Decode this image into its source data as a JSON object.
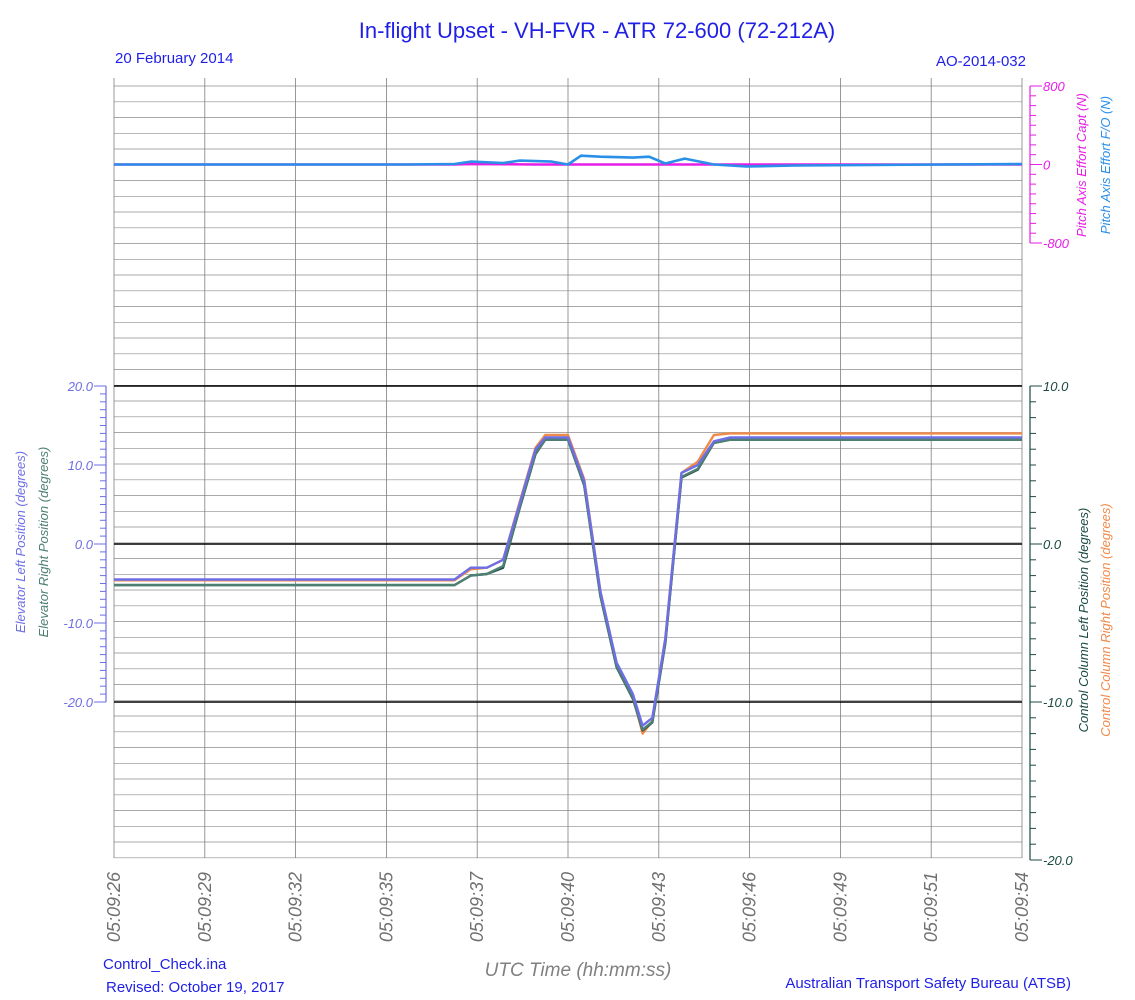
{
  "header": {
    "title": "In-flight Upset - VH-FVR -  ATR 72-600 (72-212A)",
    "date": "20 February 2014",
    "report_id": "AO-2014-032"
  },
  "footer": {
    "file": "Control_Check.ina",
    "revised": "Revised: October 19, 2017",
    "org": "Australian Transport Safety Bureau (ATSB)"
  },
  "colors": {
    "title_blue": "#1f1fe6",
    "magenta": "#e61ee6",
    "light_blue": "#2a8fe8",
    "elev_left": "#6e6ee6",
    "elev_right": "#4e7f73",
    "col_left": "#1b4a42",
    "col_right": "#f08a4b",
    "grid": "#7f7f7f",
    "zero_line": "#000000"
  },
  "chart_data": {
    "type": "line",
    "x_label": "UTC Time (hh:mm:ss)",
    "x_range": [
      "05:09:26",
      "05:09:54"
    ],
    "x_ticks": [
      "05:09:26",
      "05:09:29",
      "05:09:32",
      "05:09:35",
      "05:09:37",
      "05:09:40",
      "05:09:43",
      "05:09:46",
      "05:09:49",
      "05:09:51",
      "05:09:54"
    ],
    "panels": [
      {
        "name": "pitch_effort",
        "axis": {
          "side": "right",
          "labels": [
            "Pitch Axis Effort Capt (N)",
            "Pitch Axis Effort F/O (N)"
          ],
          "ticks": [
            "800",
            "0",
            "-800"
          ],
          "ylim": [
            -800,
            800
          ]
        },
        "series": [
          {
            "name": "Pitch Axis Effort Capt (N)",
            "color_key": "magenta",
            "points": [
              [
                "05:09:26",
                0
              ],
              [
                "05:09:36.5",
                0
              ],
              [
                "05:09:37",
                5
              ],
              [
                "05:09:38",
                3
              ],
              [
                "05:09:39",
                0
              ],
              [
                "05:09:40",
                0
              ],
              [
                "05:09:41",
                0
              ],
              [
                "05:09:42",
                0
              ],
              [
                "05:09:43",
                0
              ],
              [
                "05:09:44",
                0
              ],
              [
                "05:09:45",
                0
              ],
              [
                "05:09:46",
                0
              ],
              [
                "05:09:54",
                0
              ]
            ]
          },
          {
            "name": "Pitch Axis Effort F/O (N)",
            "color_key": "light_blue",
            "points": [
              [
                "05:09:26",
                0
              ],
              [
                "05:09:35",
                0
              ],
              [
                "05:09:36.5",
                5
              ],
              [
                "05:09:37",
                30
              ],
              [
                "05:09:38",
                15
              ],
              [
                "05:09:38.5",
                40
              ],
              [
                "05:09:39.5",
                30
              ],
              [
                "05:09:40",
                0
              ],
              [
                "05:09:40.4",
                90
              ],
              [
                "05:09:41",
                80
              ],
              [
                "05:09:42",
                70
              ],
              [
                "05:09:42.5",
                80
              ],
              [
                "05:09:43",
                10
              ],
              [
                "05:09:43.6",
                60
              ],
              [
                "05:09:44.5",
                0
              ],
              [
                "05:09:45.5",
                -20
              ],
              [
                "05:09:47",
                -10
              ],
              [
                "05:09:54",
                5
              ]
            ]
          }
        ]
      },
      {
        "name": "elevator_and_column",
        "axes": {
          "left": {
            "labels": [
              "Elevator Left Position (degrees)",
              "Elevator Right Position (degrees)"
            ],
            "ticks": [
              "20.0",
              "10.0",
              "0.0",
              "-10.0",
              "-20.0"
            ],
            "ylim": [
              -40,
              20
            ]
          },
          "right": {
            "labels": [
              "Control Column Left Position (degrees)",
              "Control Column Right Position (degrees)"
            ],
            "ticks": [
              "10.0",
              "0.0",
              "-10.0",
              "-20.0"
            ],
            "ylim": [
              -20,
              10
            ]
          }
        },
        "reference_lines": [
          20,
          0,
          -20
        ],
        "series": [
          {
            "name": "Elevator Left Position (degrees)",
            "color_key": "elev_left",
            "points": [
              [
                "05:09:26",
                -4.5
              ],
              [
                "05:09:36.5",
                -4.5
              ],
              [
                "05:09:37",
                -3
              ],
              [
                "05:09:37.5",
                -3
              ],
              [
                "05:09:38",
                -2
              ],
              [
                "05:09:38.5",
                5
              ],
              [
                "05:09:39",
                12
              ],
              [
                "05:09:39.3",
                13.5
              ],
              [
                "05:09:40",
                13.5
              ],
              [
                "05:09:40.5",
                8
              ],
              [
                "05:09:41",
                -6
              ],
              [
                "05:09:41.5",
                -15
              ],
              [
                "05:09:42",
                -19
              ],
              [
                "05:09:42.3",
                -23
              ],
              [
                "05:09:42.6",
                -22
              ],
              [
                "05:09:43",
                -12
              ],
              [
                "05:09:43.5",
                9
              ],
              [
                "05:09:44",
                10
              ],
              [
                "05:09:44.5",
                13
              ],
              [
                "05:09:45",
                13.5
              ],
              [
                "05:09:54",
                13.5
              ]
            ]
          },
          {
            "name": "Elevator Right Position (degrees)",
            "color_key": "elev_right",
            "points": [
              [
                "05:09:26",
                -5.2
              ],
              [
                "05:09:36.5",
                -5.2
              ],
              [
                "05:09:37",
                -4
              ],
              [
                "05:09:37.5",
                -3.8
              ],
              [
                "05:09:38",
                -2.8
              ],
              [
                "05:09:38.5",
                4.5
              ],
              [
                "05:09:39",
                11.5
              ],
              [
                "05:09:39.3",
                13.2
              ],
              [
                "05:09:40",
                13.2
              ],
              [
                "05:09:40.5",
                7.5
              ],
              [
                "05:09:41",
                -6.5
              ],
              [
                "05:09:41.5",
                -15.5
              ],
              [
                "05:09:42",
                -19.5
              ],
              [
                "05:09:42.3",
                -23.5
              ],
              [
                "05:09:42.6",
                -22.5
              ],
              [
                "05:09:43",
                -12.5
              ],
              [
                "05:09:43.5",
                8.5
              ],
              [
                "05:09:44",
                9.5
              ],
              [
                "05:09:44.5",
                12.8
              ],
              [
                "05:09:45",
                13.2
              ],
              [
                "05:09:54",
                13.2
              ]
            ]
          },
          {
            "name": "Control Column Left Position (degrees)",
            "axis": "right",
            "color_key": "col_left",
            "points": [
              [
                "05:09:26",
                -2.6
              ],
              [
                "05:09:36.5",
                -2.6
              ],
              [
                "05:09:37",
                -2
              ],
              [
                "05:09:37.5",
                -1.9
              ],
              [
                "05:09:38",
                -1.5
              ],
              [
                "05:09:38.5",
                2.2
              ],
              [
                "05:09:39",
                5.7
              ],
              [
                "05:09:39.3",
                6.6
              ],
              [
                "05:09:40",
                6.6
              ],
              [
                "05:09:40.5",
                3.7
              ],
              [
                "05:09:41",
                -3.3
              ],
              [
                "05:09:41.5",
                -7.8
              ],
              [
                "05:09:42",
                -9.8
              ],
              [
                "05:09:42.3",
                -11.8
              ],
              [
                "05:09:42.6",
                -11.3
              ],
              [
                "05:09:43",
                -6.3
              ],
              [
                "05:09:43.5",
                4.2
              ],
              [
                "05:09:44",
                4.7
              ],
              [
                "05:09:44.5",
                6.4
              ],
              [
                "05:09:45",
                6.6
              ],
              [
                "05:09:54",
                6.6
              ]
            ]
          },
          {
            "name": "Control Column Right Position (degrees)",
            "axis": "right",
            "color_key": "col_right",
            "points": [
              [
                "05:09:26",
                -2.3
              ],
              [
                "05:09:36.5",
                -2.3
              ],
              [
                "05:09:37",
                -1.6
              ],
              [
                "05:09:37.5",
                -1.5
              ],
              [
                "05:09:38",
                -1
              ],
              [
                "05:09:38.5",
                2.6
              ],
              [
                "05:09:39",
                6.1
              ],
              [
                "05:09:39.3",
                6.9
              ],
              [
                "05:09:40",
                6.9
              ],
              [
                "05:09:40.5",
                4.1
              ],
              [
                "05:09:41",
                -3
              ],
              [
                "05:09:41.5",
                -7.6
              ],
              [
                "05:09:42",
                -9.6
              ],
              [
                "05:09:42.3",
                -12
              ],
              [
                "05:09:42.6",
                -11.2
              ],
              [
                "05:09:43",
                -6
              ],
              [
                "05:09:43.5",
                4.5
              ],
              [
                "05:09:44",
                5.2
              ],
              [
                "05:09:44.5",
                6.9
              ],
              [
                "05:09:45",
                7
              ],
              [
                "05:09:54",
                7
              ]
            ]
          }
        ]
      }
    ]
  }
}
